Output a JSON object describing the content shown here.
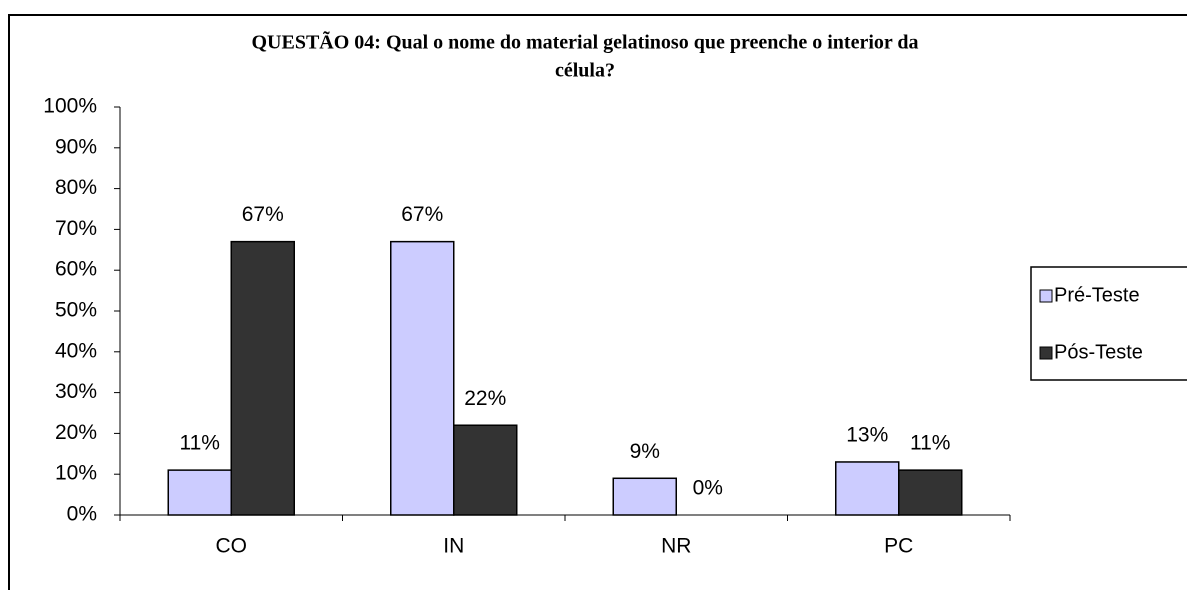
{
  "chart_data": {
    "type": "bar",
    "title": [
      "QUESTÃO 04: Qual o nome do material gelatinoso que preenche o interior da",
      "célula?"
    ],
    "categories": [
      "CO",
      "IN",
      "NR",
      "PC"
    ],
    "series": [
      {
        "name": "Pré-Teste",
        "color": "#ccccff",
        "values": [
          11,
          67,
          9,
          13
        ],
        "value_labels": [
          "11%",
          "67%",
          "9%",
          "13%"
        ]
      },
      {
        "name": "Pós-Teste",
        "color": "#333333",
        "values": [
          67,
          22,
          0,
          11
        ],
        "value_labels": [
          "67%",
          "22%",
          "0%",
          "11%"
        ]
      }
    ],
    "ylim": [
      0,
      100
    ],
    "yticks": [
      {
        "value": 0,
        "label": "0%"
      },
      {
        "value": 10,
        "label": "10%"
      },
      {
        "value": 20,
        "label": "20%"
      },
      {
        "value": 30,
        "label": "30%"
      },
      {
        "value": 40,
        "label": "40%"
      },
      {
        "value": 50,
        "label": "50%"
      },
      {
        "value": 60,
        "label": "60%"
      },
      {
        "value": 70,
        "label": "70%"
      },
      {
        "value": 80,
        "label": "80%"
      },
      {
        "value": 90,
        "label": "90%"
      },
      {
        "value": 100,
        "label": "100%"
      }
    ],
    "grid": false,
    "legend": "right"
  }
}
